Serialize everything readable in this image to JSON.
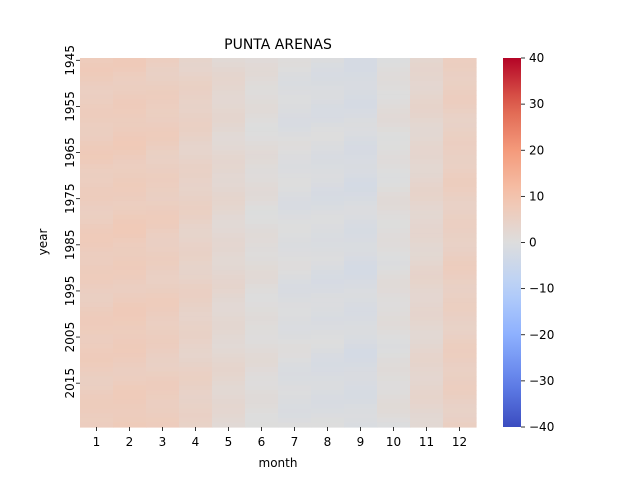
{
  "chart_data": {
    "type": "heatmap",
    "title": "PUNTA ARENAS",
    "xlabel": "month",
    "ylabel": "year",
    "x": [
      1,
      2,
      3,
      4,
      5,
      6,
      7,
      8,
      9,
      10,
      11,
      12
    ],
    "y_tick_labels": [
      "1945",
      "1955",
      "1965",
      "1975",
      "1985",
      "1995",
      "2005",
      "2015"
    ],
    "y_range": [
      1945,
      2024
    ],
    "monthly_means": [
      6.5,
      6.8,
      6.0,
      4.5,
      2.5,
      0.8,
      -0.5,
      -1.0,
      -1.5,
      0.5,
      3.0,
      5.5
    ],
    "colorbar": {
      "colormap": "coolwarm",
      "vmin": -40,
      "vmax": 40,
      "ticks": [
        "40",
        "30",
        "20",
        "10",
        "0",
        "−10",
        "−20",
        "−30",
        "−40"
      ]
    }
  }
}
